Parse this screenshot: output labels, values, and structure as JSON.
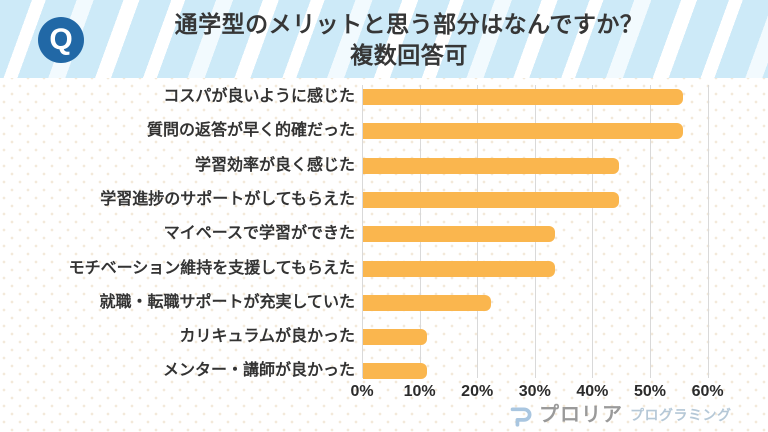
{
  "header": {
    "badge": "Q",
    "title_line1": "通学型のメリットと思う部分はなんですか？",
    "title_line2": "複数回答可"
  },
  "chart_data": {
    "type": "bar",
    "orientation": "horizontal",
    "title": "通学型のメリットと思う部分はなんですか？ 複数回答可",
    "categories": [
      "コスパが良いように感じた",
      "質問の返答が早く的確だった",
      "学習効率が良く感じた",
      "学習進捗のサポートがしてもらえた",
      "マイペースで学習ができた",
      "モチベーション維持を支援してもらえた",
      "就職・転職サポートが充実していた",
      "カリキュラムが良かった",
      "メンター・講師が良かった"
    ],
    "values": [
      55.6,
      55.6,
      44.4,
      44.4,
      33.3,
      33.3,
      22.2,
      11.1,
      11.1
    ],
    "value_unit": "%",
    "xlim": [
      0,
      60
    ],
    "x_ticks": [
      "0%",
      "10%",
      "20%",
      "30%",
      "40%",
      "50%",
      "60%"
    ],
    "grid": true,
    "legend": "none",
    "bar_color": "#fab64e"
  },
  "footer": {
    "brand": "プロリア",
    "brand_suffix": "プログラミング"
  },
  "colors": {
    "header_bg": "#cdeaf8",
    "header_stripe": "#ffffff",
    "q_badge_bg": "#2168a6",
    "q_badge_text": "#ffffff",
    "title_text": "#363636",
    "bar": "#fab64e",
    "gridline": "#d9d9d9",
    "axis_text": "#2b2b2b",
    "category_text": "#333333",
    "brand_text": "#9a9a9a",
    "brand_suffix_text": "#b5c8d7",
    "dot_pattern": "#f3e9da"
  }
}
